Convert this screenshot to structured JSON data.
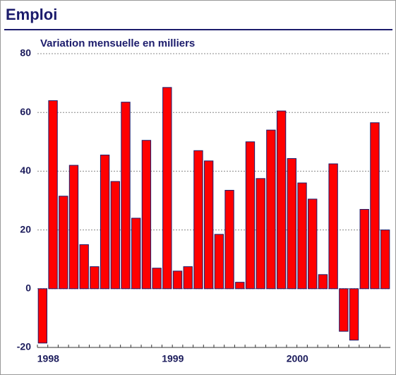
{
  "chart_data": {
    "type": "bar",
    "title": "Emploi",
    "subtitle": "Variation mensuelle en milliers",
    "categories": [
      "1998",
      null,
      null,
      null,
      null,
      null,
      null,
      null,
      null,
      null,
      null,
      null,
      "1999",
      null,
      null,
      null,
      null,
      null,
      null,
      null,
      null,
      null,
      null,
      null,
      "2000",
      null,
      null,
      null,
      null,
      null,
      null,
      null,
      null,
      null
    ],
    "values": [
      -18.5,
      64,
      31.5,
      42,
      15,
      7.5,
      45.5,
      36.5,
      63.5,
      24,
      50.5,
      7,
      68.5,
      6,
      7.5,
      47,
      43.5,
      18.5,
      33.5,
      2.2,
      50,
      37.5,
      54,
      60.5,
      44.3,
      36,
      30.5,
      4.8,
      42.5,
      -14.5,
      -17.5,
      27,
      56.5,
      20
    ],
    "color": "#ff0000",
    "ylim": [
      -20,
      80
    ],
    "yticks": [
      -20,
      0,
      20,
      40,
      60,
      80
    ],
    "grid": true
  }
}
